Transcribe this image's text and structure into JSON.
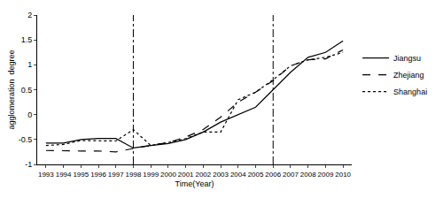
{
  "chart_data": {
    "type": "line",
    "x_label": "Time(Year)",
    "y_label": "agglomeration  degree",
    "x": [
      1993,
      1994,
      1995,
      1996,
      1997,
      1998,
      1999,
      2000,
      2001,
      2002,
      2003,
      2004,
      2005,
      2006,
      2007,
      2008,
      2009,
      2010
    ],
    "series": [
      {
        "name": "Jiangsu",
        "color": "#000000",
        "line_style": "solid",
        "values": [
          -0.57,
          -0.57,
          -0.5,
          -0.48,
          -0.48,
          -0.67,
          -0.62,
          -0.58,
          -0.5,
          -0.35,
          -0.15,
          0.0,
          0.15,
          0.5,
          0.85,
          1.15,
          1.25,
          1.48
        ]
      },
      {
        "name": "Zhejiang",
        "color": "#000000",
        "line_style": "dash",
        "values": [
          -0.72,
          -0.73,
          -0.73,
          -0.73,
          -0.75,
          -0.68,
          -0.62,
          -0.56,
          -0.45,
          -0.3,
          -0.05,
          0.25,
          0.45,
          0.68,
          0.98,
          1.1,
          1.12,
          1.3
        ]
      },
      {
        "name": "Shanghai",
        "color": "#000000",
        "line_style": "dot",
        "values": [
          -0.62,
          -0.6,
          -0.52,
          -0.53,
          -0.53,
          -0.3,
          -0.62,
          -0.56,
          -0.48,
          -0.35,
          -0.35,
          0.3,
          0.45,
          0.7,
          0.98,
          1.1,
          1.15,
          1.25
        ]
      }
    ],
    "vertical_lines": [
      1998,
      2006
    ],
    "xlim": [
      1992.5,
      2010.5
    ],
    "xticks": [
      1993,
      1994,
      1995,
      1996,
      1997,
      1998,
      1999,
      2000,
      2001,
      2002,
      2003,
      2004,
      2005,
      2006,
      2007,
      2008,
      2009,
      2010
    ],
    "ylim": [
      -1,
      2
    ],
    "yticks": [
      -1,
      -0.5,
      0,
      0.5,
      1,
      1.5,
      2
    ],
    "grid": false,
    "legend": "right"
  }
}
